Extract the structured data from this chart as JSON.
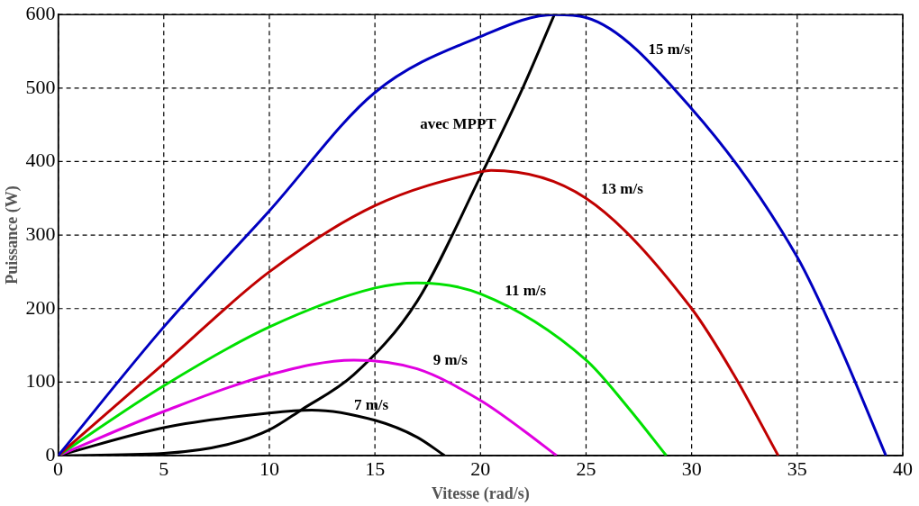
{
  "chart_data": {
    "type": "line",
    "xlabel": "Vitesse (rad/s)",
    "ylabel": "Puissance (W)",
    "xlim": [
      0,
      40
    ],
    "ylim": [
      0,
      600
    ],
    "xticks": [
      0,
      5,
      10,
      15,
      20,
      25,
      30,
      35,
      40
    ],
    "yticks": [
      0,
      100,
      200,
      300,
      400,
      500,
      600
    ],
    "grid": true,
    "legend": false,
    "marker": "none",
    "line_style": "solid",
    "series": [
      {
        "name": "15 m/s",
        "color": "#0000c0",
        "x": [
          0,
          5,
          10,
          15,
          20,
          23.5,
          25,
          30,
          35,
          37,
          39.2
        ],
        "values": [
          0,
          175,
          333,
          494,
          570,
          600,
          596,
          472,
          270,
          150,
          0
        ]
      },
      {
        "name": "13 m/s",
        "color": "#c00000",
        "x": [
          0,
          5,
          10,
          15,
          20,
          20.5,
          25,
          30,
          32,
          34.1
        ],
        "values": [
          0,
          125,
          250,
          340,
          386,
          388,
          350,
          200,
          110,
          0
        ]
      },
      {
        "name": "11 m/s",
        "color": "#00e000",
        "x": [
          0,
          5,
          10,
          15,
          17,
          20,
          25,
          27,
          28.8
        ],
        "values": [
          0,
          95,
          175,
          228,
          235,
          220,
          130,
          65,
          0
        ]
      },
      {
        "name": "9 m/s",
        "color": "#e000e0",
        "x": [
          0,
          5,
          10,
          14,
          17,
          20,
          22,
          23.6
        ],
        "values": [
          0,
          60,
          110,
          130,
          118,
          75,
          35,
          0
        ]
      },
      {
        "name": "7 m/s",
        "color": "#000000",
        "x": [
          0,
          5,
          10,
          12,
          15,
          17,
          18.3
        ],
        "values": [
          0,
          38,
          58,
          62,
          48,
          25,
          0
        ]
      },
      {
        "name": "avec MPPT",
        "color": "#000000",
        "x": [
          0,
          5,
          8,
          10,
          11.5,
          14,
          17,
          20,
          22,
          23.5
        ],
        "values": [
          0,
          3,
          15,
          35,
          62,
          110,
          210,
          380,
          500,
          600
        ]
      }
    ]
  }
}
